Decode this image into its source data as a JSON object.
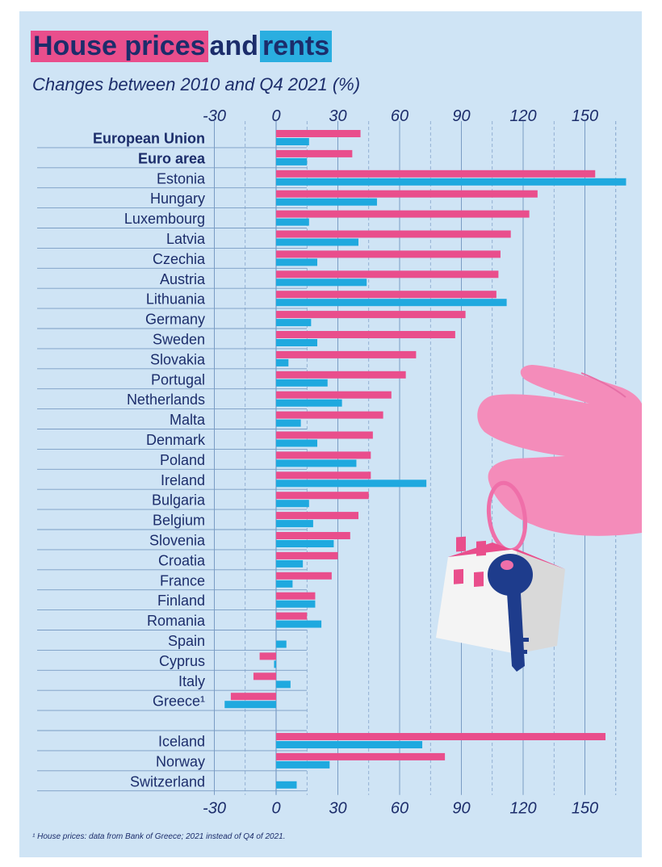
{
  "title": {
    "part1": "House prices",
    "part2": "and",
    "part3": "rents"
  },
  "subtitle": "Changes between 2010 and Q4 2021 (%)",
  "footnote": "¹ House prices: data from Bank of Greece; 2021 instead of Q4 of 2021.",
  "colors": {
    "house_prices": "#e94e8c",
    "rents": "#1fa9df",
    "text": "#1c2d6b",
    "background": "#cfe4f5",
    "grid": "#7a9cc4"
  },
  "chart_data": {
    "type": "bar",
    "orientation": "horizontal",
    "xlim": [
      -30,
      170
    ],
    "xticks": [
      -30,
      0,
      30,
      60,
      90,
      120,
      150
    ],
    "grid": true,
    "categories": [
      "European Union",
      "Euro area",
      "Estonia",
      "Hungary",
      "Luxembourg",
      "Latvia",
      "Czechia",
      "Austria",
      "Lithuania",
      "Germany",
      "Sweden",
      "Slovakia",
      "Portugal",
      "Netherlands",
      "Malta",
      "Denmark",
      "Poland",
      "Ireland",
      "Bulgaria",
      "Belgium",
      "Slovenia",
      "Croatia",
      "France",
      "Finland",
      "Romania",
      "Spain",
      "Cyprus",
      "Italy",
      "Greece¹",
      "",
      "Iceland",
      "Norway",
      "Switzerland"
    ],
    "bold_categories": [
      "European Union",
      "Euro area"
    ],
    "series": [
      {
        "key": "house_prices",
        "values": [
          41,
          37,
          155,
          127,
          123,
          114,
          109,
          108,
          107,
          92,
          87,
          68,
          63,
          56,
          52,
          47,
          46,
          46,
          45,
          40,
          36,
          30,
          27,
          19,
          15,
          null,
          -8,
          -11,
          -22,
          null,
          160,
          82,
          null
        ]
      },
      {
        "key": "rents",
        "values": [
          16,
          15,
          170,
          49,
          16,
          40,
          20,
          44,
          112,
          17,
          20,
          6,
          25,
          32,
          12,
          20,
          39,
          73,
          16,
          18,
          28,
          13,
          8,
          19,
          22,
          5,
          -1,
          7,
          -25,
          null,
          71,
          26,
          10
        ]
      }
    ]
  }
}
